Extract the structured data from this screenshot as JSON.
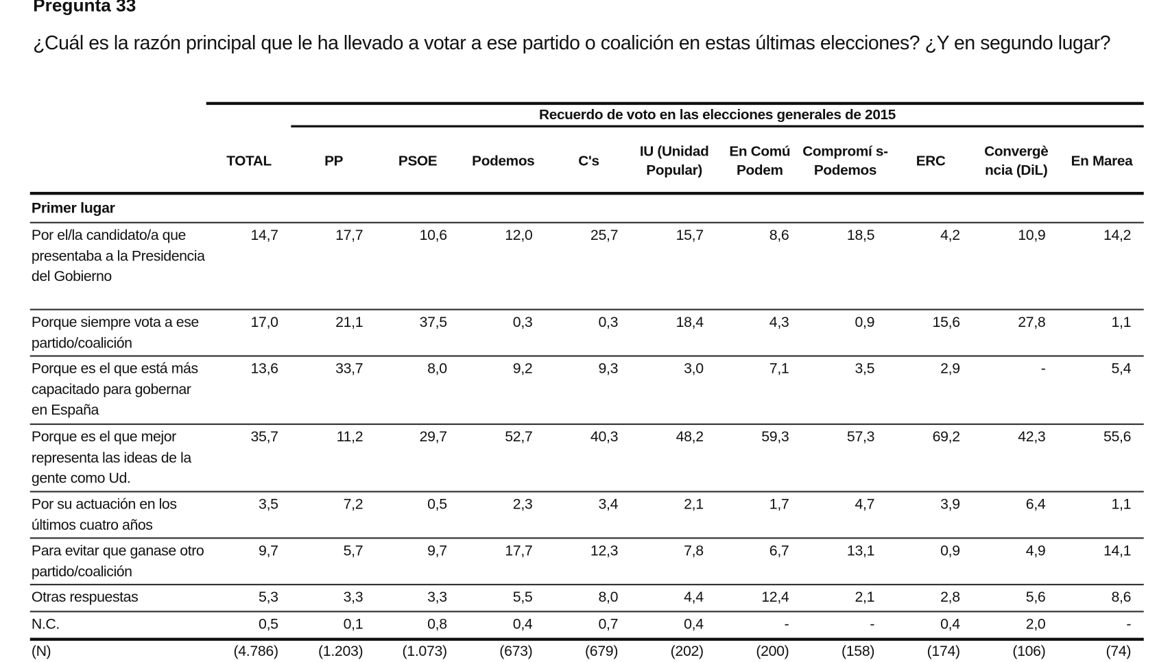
{
  "title": "Pregunta 33",
  "question": "¿Cuál es la razón principal que le ha llevado a votar a ese partido o coalición en estas últimas elecciones? ¿Y en segundo lugar?",
  "table": {
    "group_header": "Recuerdo de voto en las elecciones generales de 2015",
    "columns": [
      "TOTAL",
      "PP",
      "PSOE",
      "Podemos",
      "C's",
      "IU (Unidad Popular)",
      "En Comú Podem",
      "Compromí s-Podemos",
      "ERC",
      "Convergè ncia (DiL)",
      "En Marea"
    ],
    "section": "Primer lugar",
    "rows": [
      {
        "label": "Por el/la candidato/a que presentaba a la Presidencia del Gobierno",
        "values": [
          "14,7",
          "17,7",
          "10,6",
          "12,0",
          "25,7",
          "15,7",
          "8,6",
          "18,5",
          "4,2",
          "10,9",
          "14,2"
        ]
      },
      {
        "label": "Porque siempre vota a ese partido/coalición",
        "values": [
          "17,0",
          "21,1",
          "37,5",
          "0,3",
          "0,3",
          "18,4",
          "4,3",
          "0,9",
          "15,6",
          "27,8",
          "1,1"
        ]
      },
      {
        "label": "Porque es el que está más capacitado para gobernar en España",
        "values": [
          "13,6",
          "33,7",
          "8,0",
          "9,2",
          "9,3",
          "3,0",
          "7,1",
          "3,5",
          "2,9",
          "-",
          "5,4"
        ]
      },
      {
        "label": "Porque es el que mejor representa las ideas de la gente como Ud.",
        "values": [
          "35,7",
          "11,2",
          "29,7",
          "52,7",
          "40,3",
          "48,2",
          "59,3",
          "57,3",
          "69,2",
          "42,3",
          "55,6"
        ]
      },
      {
        "label": "Por su actuación en los últimos cuatro años",
        "values": [
          "3,5",
          "7,2",
          "0,5",
          "2,3",
          "3,4",
          "2,1",
          "1,7",
          "4,7",
          "3,9",
          "6,4",
          "1,1"
        ]
      },
      {
        "label": "Para evitar que ganase otro partido/coalición",
        "values": [
          "9,7",
          "5,7",
          "9,7",
          "17,7",
          "12,3",
          "7,8",
          "6,7",
          "13,1",
          "0,9",
          "4,9",
          "14,1"
        ]
      },
      {
        "label": "Otras respuestas",
        "values": [
          "5,3",
          "3,3",
          "3,3",
          "5,5",
          "8,0",
          "4,4",
          "12,4",
          "2,1",
          "2,8",
          "5,6",
          "8,6"
        ]
      },
      {
        "label": "N.C.",
        "values": [
          "0,5",
          "0,1",
          "0,8",
          "0,4",
          "0,7",
          "0,4",
          "-",
          "-",
          "0,4",
          "2,0",
          "-"
        ]
      }
    ],
    "n_row": {
      "label": "(N)",
      "values": [
        "(4.786)",
        "(1.203)",
        "(1.073)",
        "(673)",
        "(679)",
        "(202)",
        "(200)",
        "(158)",
        "(174)",
        "(106)",
        "(74)"
      ]
    }
  }
}
